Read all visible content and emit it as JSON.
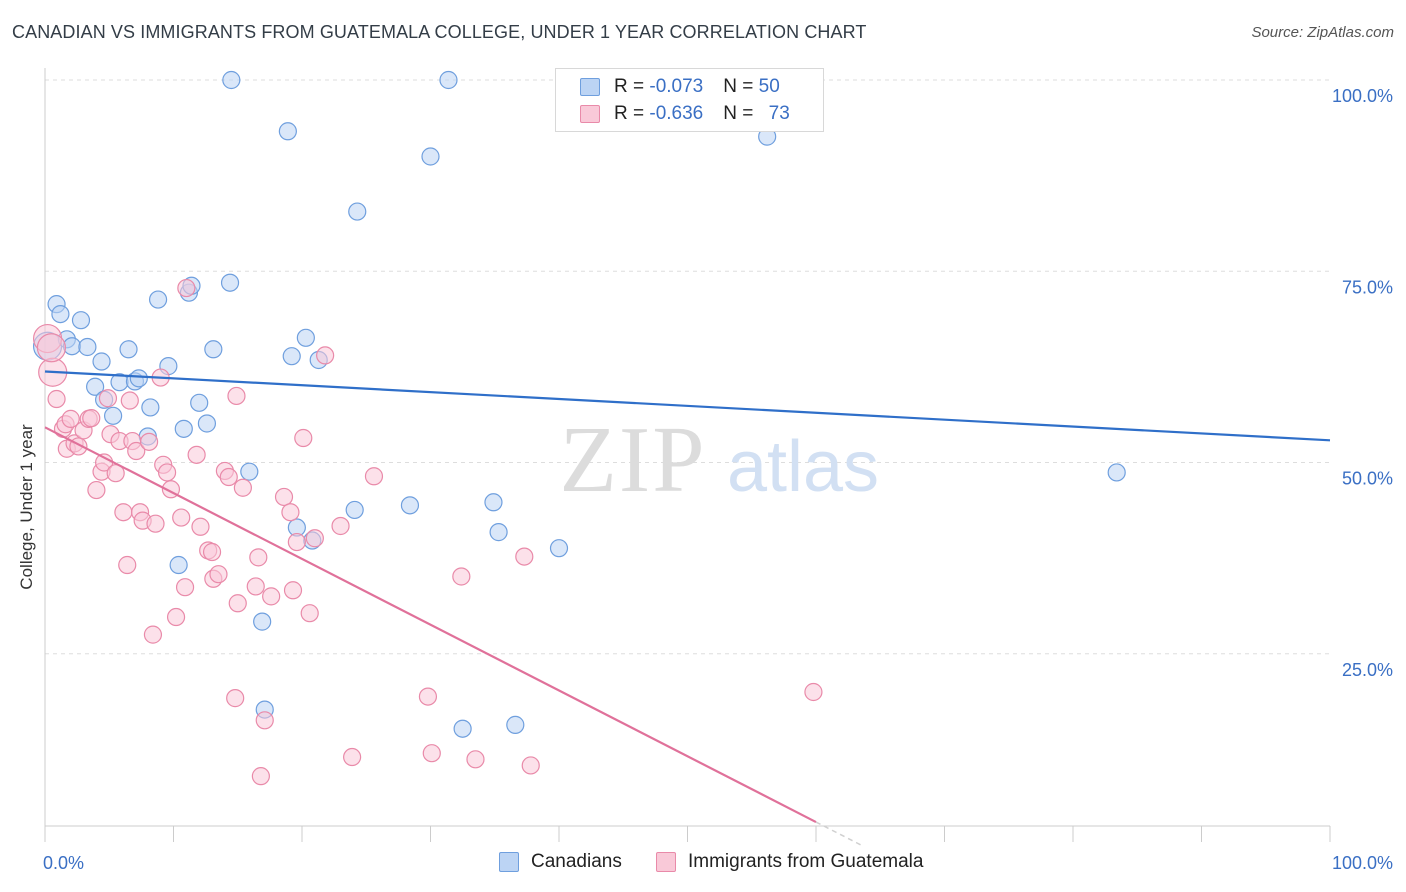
{
  "title": "CANADIAN VS IMMIGRANTS FROM GUATEMALA COLLEGE, UNDER 1 YEAR CORRELATION CHART",
  "source": "Source: ZipAtlas.com",
  "watermark": {
    "zip": "ZIP",
    "atlas": "atlas"
  },
  "legend": {
    "r_label": "R = ",
    "n_label": "N = ",
    "rows": [
      {
        "r": "-0.073",
        "n": "50",
        "color": "#6f9fde",
        "fill": "#bcd4f4"
      },
      {
        "r": "-0.636",
        "n": "73",
        "color": "#e98aa9",
        "fill": "#f9c9d8"
      }
    ]
  },
  "bottom_legend": [
    "Canadians",
    "Immigrants from Guatemala"
  ],
  "chart_data": {
    "type": "scatter",
    "ylabel": "College, Under 1 year",
    "xlim": [
      0,
      100
    ],
    "ylim": [
      0,
      102
    ],
    "x_tick_labels": [
      {
        "x": 0,
        "label": "0.0%"
      },
      {
        "x": 100,
        "label": "100.0%"
      }
    ],
    "y_tick_labels": [
      {
        "y": 100,
        "label": "100.0%"
      },
      {
        "y": 75,
        "label": "75.0%"
      },
      {
        "y": 50,
        "label": "50.0%"
      },
      {
        "y": 25,
        "label": "25.0%"
      }
    ],
    "x_minor_ticks": [
      0,
      10,
      20,
      30,
      40,
      50,
      60,
      70,
      80,
      90,
      100
    ],
    "grid": true,
    "series": [
      {
        "name": "Canadians",
        "color": "#6f9fde",
        "fill": "#bcd4f4",
        "trend": {
          "x": [
            0,
            100
          ],
          "y": [
            61.9,
            52.9
          ],
          "color": "#2f6fc9"
        },
        "points": [
          [
            0.2,
            65.2
          ],
          [
            0.9,
            70.7
          ],
          [
            1.2,
            69.4
          ],
          [
            1.7,
            66.1
          ],
          [
            2.1,
            65.2
          ],
          [
            2.8,
            68.6
          ],
          [
            3.3,
            65.1
          ],
          [
            3.9,
            59.9
          ],
          [
            4.4,
            63.2
          ],
          [
            4.6,
            58.2
          ],
          [
            5.3,
            56.1
          ],
          [
            5.8,
            60.5
          ],
          [
            6.5,
            64.8
          ],
          [
            7.0,
            60.6
          ],
          [
            7.3,
            61.0
          ],
          [
            8.0,
            53.4
          ],
          [
            8.2,
            57.2
          ],
          [
            8.8,
            71.3
          ],
          [
            9.6,
            62.6
          ],
          [
            10.4,
            36.6
          ],
          [
            10.8,
            54.4
          ],
          [
            11.2,
            72.2
          ],
          [
            11.4,
            73.1
          ],
          [
            12.0,
            57.8
          ],
          [
            12.6,
            55.1
          ],
          [
            13.1,
            64.8
          ],
          [
            14.4,
            73.5
          ],
          [
            14.5,
            100.0
          ],
          [
            15.9,
            48.8
          ],
          [
            16.9,
            29.2
          ],
          [
            17.1,
            17.7
          ],
          [
            18.9,
            93.3
          ],
          [
            19.2,
            63.9
          ],
          [
            19.6,
            41.5
          ],
          [
            20.3,
            66.3
          ],
          [
            20.8,
            39.8
          ],
          [
            21.3,
            63.4
          ],
          [
            24.1,
            43.8
          ],
          [
            24.3,
            82.8
          ],
          [
            28.4,
            44.4
          ],
          [
            30.0,
            90.0
          ],
          [
            31.4,
            100.0
          ],
          [
            32.5,
            15.2
          ],
          [
            34.9,
            44.8
          ],
          [
            35.3,
            40.9
          ],
          [
            36.6,
            15.7
          ],
          [
            40.0,
            38.8
          ],
          [
            47.3,
            100.0
          ],
          [
            56.2,
            92.6
          ],
          [
            83.4,
            48.7
          ]
        ]
      },
      {
        "name": "Immigrants from Guatemala",
        "color": "#e98aa9",
        "fill": "#f9c9d8",
        "trend": {
          "x": [
            0,
            60
          ],
          "y": [
            54.6,
            3.0
          ],
          "color": "#e0719a",
          "dash_x": [
            60,
            63.5
          ],
          "dash_y": [
            3.0,
            0.0
          ]
        },
        "points": [
          [
            0.2,
            66.2
          ],
          [
            0.6,
            61.8
          ],
          [
            0.9,
            58.3
          ],
          [
            1.4,
            54.4
          ],
          [
            1.6,
            55.0
          ],
          [
            1.7,
            51.8
          ],
          [
            2.0,
            55.7
          ],
          [
            2.3,
            52.5
          ],
          [
            2.6,
            52.1
          ],
          [
            3.0,
            54.2
          ],
          [
            3.4,
            55.7
          ],
          [
            3.6,
            55.8
          ],
          [
            4.0,
            46.4
          ],
          [
            4.4,
            48.8
          ],
          [
            4.6,
            50.0
          ],
          [
            4.9,
            58.4
          ],
          [
            5.1,
            53.7
          ],
          [
            5.5,
            48.6
          ],
          [
            5.8,
            52.8
          ],
          [
            6.1,
            43.5
          ],
          [
            6.4,
            36.6
          ],
          [
            6.6,
            58.1
          ],
          [
            6.8,
            52.8
          ],
          [
            7.1,
            51.5
          ],
          [
            7.4,
            43.5
          ],
          [
            7.6,
            42.4
          ],
          [
            8.1,
            52.7
          ],
          [
            8.4,
            27.5
          ],
          [
            8.6,
            42.0
          ],
          [
            9.0,
            61.1
          ],
          [
            9.2,
            49.7
          ],
          [
            9.5,
            48.7
          ],
          [
            9.8,
            46.5
          ],
          [
            10.2,
            29.8
          ],
          [
            10.6,
            42.8
          ],
          [
            10.9,
            33.7
          ],
          [
            11.0,
            72.8
          ],
          [
            11.8,
            51.0
          ],
          [
            12.1,
            41.6
          ],
          [
            12.7,
            38.5
          ],
          [
            13.0,
            38.3
          ],
          [
            13.1,
            34.8
          ],
          [
            13.5,
            35.4
          ],
          [
            14.0,
            48.9
          ],
          [
            14.3,
            48.1
          ],
          [
            14.8,
            19.2
          ],
          [
            14.9,
            58.7
          ],
          [
            15.0,
            31.6
          ],
          [
            15.4,
            46.7
          ],
          [
            16.4,
            33.8
          ],
          [
            16.6,
            37.6
          ],
          [
            16.8,
            9.0
          ],
          [
            17.1,
            16.3
          ],
          [
            17.6,
            32.5
          ],
          [
            18.6,
            45.5
          ],
          [
            19.1,
            43.5
          ],
          [
            19.3,
            33.3
          ],
          [
            19.6,
            39.6
          ],
          [
            20.1,
            53.2
          ],
          [
            20.6,
            30.3
          ],
          [
            21.0,
            40.1
          ],
          [
            21.8,
            64.0
          ],
          [
            23.0,
            41.7
          ],
          [
            23.9,
            11.5
          ],
          [
            25.6,
            48.2
          ],
          [
            29.8,
            19.4
          ],
          [
            30.1,
            12.0
          ],
          [
            32.4,
            35.1
          ],
          [
            33.5,
            11.2
          ],
          [
            37.3,
            37.7
          ],
          [
            37.8,
            10.4
          ],
          [
            59.8,
            20.0
          ],
          [
            0.5,
            65.0
          ]
        ]
      }
    ]
  }
}
